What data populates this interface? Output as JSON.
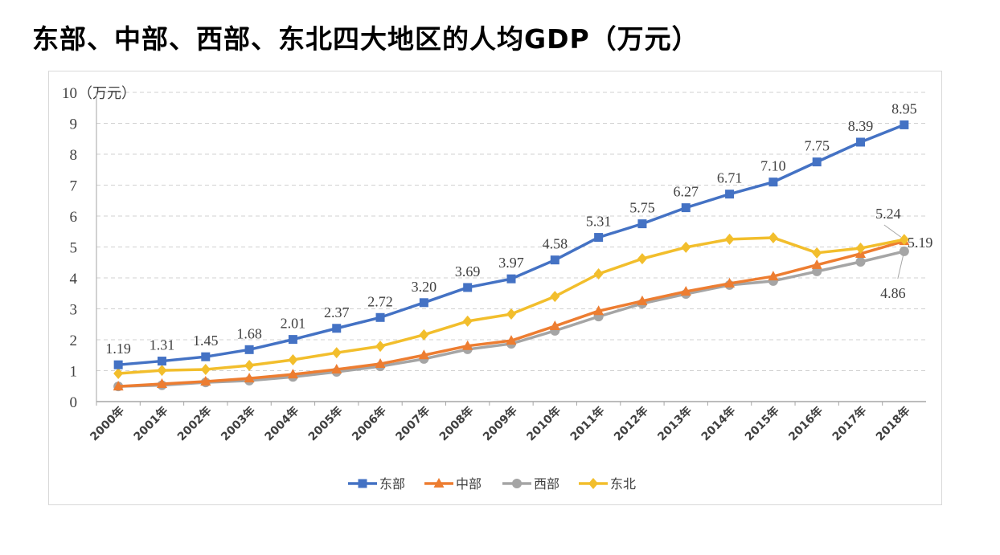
{
  "title": "东部、中部、西部、东北四大地区的人均GDP（万元）",
  "chart_data": {
    "type": "line",
    "title": "东部、中部、西部、东北四大地区的人均GDP（万元）",
    "ylabel": "（万元）",
    "ylim": [
      0,
      10
    ],
    "yticks": [
      0,
      1,
      2,
      3,
      4,
      5,
      6,
      7,
      8,
      9,
      10
    ],
    "grid": true,
    "legend": "bottom",
    "categories": [
      "2000年",
      "2001年",
      "2002年",
      "2003年",
      "2004年",
      "2005年",
      "2006年",
      "2007年",
      "2008年",
      "2009年",
      "2010年",
      "2011年",
      "2012年",
      "2013年",
      "2014年",
      "2015年",
      "2016年",
      "2017年",
      "2018年"
    ],
    "series": [
      {
        "name": "东部",
        "color": "#4472C4",
        "marker": "square",
        "values": [
          1.19,
          1.31,
          1.45,
          1.68,
          2.01,
          2.37,
          2.72,
          3.2,
          3.69,
          3.97,
          4.58,
          5.31,
          5.75,
          6.27,
          6.71,
          7.1,
          7.75,
          8.39,
          8.95
        ],
        "labels": [
          "1.19",
          "1.31",
          "1.45",
          "1.68",
          "2.01",
          "2.37",
          "2.72",
          "3.20",
          "3.69",
          "3.97",
          "4.58",
          "5.31",
          "5.75",
          "6.27",
          "6.71",
          "7.10",
          "7.75",
          "8.39",
          "8.95"
        ]
      },
      {
        "name": "中部",
        "color": "#ED7D31",
        "marker": "triangle",
        "values": [
          0.49,
          0.57,
          0.65,
          0.75,
          0.88,
          1.04,
          1.22,
          1.5,
          1.8,
          1.97,
          2.44,
          2.93,
          3.25,
          3.56,
          3.82,
          4.05,
          4.42,
          4.78,
          5.19
        ],
        "labels": {
          "18": "5.19"
        }
      },
      {
        "name": "西部",
        "color": "#A5A5A5",
        "marker": "circle",
        "values": [
          0.49,
          0.53,
          0.62,
          0.68,
          0.8,
          0.96,
          1.14,
          1.38,
          1.69,
          1.87,
          2.29,
          2.75,
          3.17,
          3.48,
          3.77,
          3.9,
          4.21,
          4.52,
          4.86
        ],
        "labels": {
          "18": "4.86"
        }
      },
      {
        "name": "东北",
        "color": "#F2BE2C",
        "marker": "diamond",
        "values": [
          0.91,
          1.01,
          1.04,
          1.17,
          1.35,
          1.58,
          1.79,
          2.16,
          2.6,
          2.83,
          3.4,
          4.13,
          4.62,
          4.99,
          5.25,
          5.3,
          4.81,
          4.96,
          5.24
        ],
        "labels": {
          "18": "5.24"
        }
      }
    ]
  }
}
